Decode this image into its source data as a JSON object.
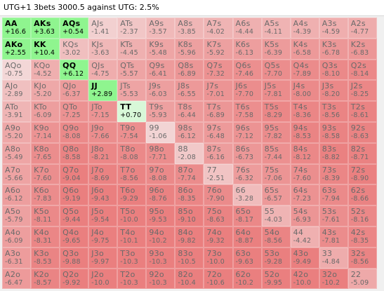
{
  "title": "UTG+1 3bets 3000.5 against UTG: 2.5%",
  "colors": {
    "selected_bg": "#8ff58f",
    "selected_light_bg": "#d8f8d8",
    "neutral_bg": "#ededed",
    "positive_bg": "#f0f0f0",
    "negative_pale": "#f3dada",
    "negative_strong": "#ea7f7f"
  },
  "grid": {
    "cells": [
      [
        {
          "h": "AA",
          "ev": "+16.6",
          "s": 1
        },
        {
          "h": "AKs",
          "ev": "+3.63",
          "s": 1
        },
        {
          "h": "AQs",
          "ev": "+0.54",
          "s": 1
        },
        {
          "h": "AJs",
          "ev": "-1.41",
          "s": 0
        },
        {
          "h": "ATs",
          "ev": "-2.37",
          "s": 0
        },
        {
          "h": "A9s",
          "ev": "-3.57",
          "s": 0
        },
        {
          "h": "A8s",
          "ev": "-3.85",
          "s": 0
        },
        {
          "h": "A7s",
          "ev": "-4.02",
          "s": 0
        },
        {
          "h": "A6s",
          "ev": "-4.44",
          "s": 0
        },
        {
          "h": "A5s",
          "ev": "-4.11",
          "s": 0
        },
        {
          "h": "A4s",
          "ev": "-4.39",
          "s": 0
        },
        {
          "h": "A3s",
          "ev": "-4.59",
          "s": 0
        },
        {
          "h": "A2s",
          "ev": "-4.77",
          "s": 0
        }
      ],
      [
        {
          "h": "AKo",
          "ev": "+2.55",
          "s": 1
        },
        {
          "h": "KK",
          "ev": "+10.4",
          "s": 1
        },
        {
          "h": "KQs",
          "ev": "-3.02",
          "s": 0
        },
        {
          "h": "KJs",
          "ev": "-3.63",
          "s": 0
        },
        {
          "h": "KTs",
          "ev": "-4.45",
          "s": 0
        },
        {
          "h": "K9s",
          "ev": "-5.48",
          "s": 0
        },
        {
          "h": "K8s",
          "ev": "-5.96",
          "s": 0
        },
        {
          "h": "K7s",
          "ev": "-5.92",
          "s": 0
        },
        {
          "h": "K6s",
          "ev": "-6.13",
          "s": 0
        },
        {
          "h": "K5s",
          "ev": "-6.39",
          "s": 0
        },
        {
          "h": "K4s",
          "ev": "-6.58",
          "s": 0
        },
        {
          "h": "K3s",
          "ev": "-6.78",
          "s": 0
        },
        {
          "h": "K2s",
          "ev": "-6.83",
          "s": 0
        }
      ],
      [
        {
          "h": "AQo",
          "ev": "-0.75",
          "s": 0
        },
        {
          "h": "KQo",
          "ev": "-4.52",
          "s": 0
        },
        {
          "h": "QQ",
          "ev": "+6.12",
          "s": 1
        },
        {
          "h": "QJs",
          "ev": "-4.75",
          "s": 0
        },
        {
          "h": "QTs",
          "ev": "-5.57",
          "s": 0
        },
        {
          "h": "Q9s",
          "ev": "-6.41",
          "s": 0
        },
        {
          "h": "Q8s",
          "ev": "-6.89",
          "s": 0
        },
        {
          "h": "Q7s",
          "ev": "-7.32",
          "s": 0
        },
        {
          "h": "Q6s",
          "ev": "-7.46",
          "s": 0
        },
        {
          "h": "Q5s",
          "ev": "-7.70",
          "s": 0
        },
        {
          "h": "Q4s",
          "ev": "-7.89",
          "s": 0
        },
        {
          "h": "Q3s",
          "ev": "-8.10",
          "s": 0
        },
        {
          "h": "Q2s",
          "ev": "-8.14",
          "s": 0
        }
      ],
      [
        {
          "h": "AJo",
          "ev": "-2.89",
          "s": 0
        },
        {
          "h": "KJo",
          "ev": "-5.20",
          "s": 0
        },
        {
          "h": "QJo",
          "ev": "-6.37",
          "s": 0
        },
        {
          "h": "JJ",
          "ev": "+2.89",
          "s": 1
        },
        {
          "h": "JTs",
          "ev": "-5.53",
          "s": 0
        },
        {
          "h": "J9s",
          "ev": "-6.03",
          "s": 0
        },
        {
          "h": "J8s",
          "ev": "-6.55",
          "s": 0
        },
        {
          "h": "J7s",
          "ev": "-7.01",
          "s": 0
        },
        {
          "h": "J6s",
          "ev": "-7.70",
          "s": 0
        },
        {
          "h": "J5s",
          "ev": "-7.81",
          "s": 0
        },
        {
          "h": "J4s",
          "ev": "-8.00",
          "s": 0
        },
        {
          "h": "J3s",
          "ev": "-8.20",
          "s": 0
        },
        {
          "h": "J2s",
          "ev": "-8.25",
          "s": 0
        }
      ],
      [
        {
          "h": "ATo",
          "ev": "-3.91",
          "s": 0
        },
        {
          "h": "KTo",
          "ev": "-6.09",
          "s": 0
        },
        {
          "h": "QTo",
          "ev": "-7.25",
          "s": 0
        },
        {
          "h": "JTo",
          "ev": "-7.15",
          "s": 0
        },
        {
          "h": "TT",
          "ev": "+0.70",
          "s": 2
        },
        {
          "h": "T9s",
          "ev": "-5.93",
          "s": 0
        },
        {
          "h": "T8s",
          "ev": "-6.44",
          "s": 0
        },
        {
          "h": "T7s",
          "ev": "-6.89",
          "s": 0
        },
        {
          "h": "T6s",
          "ev": "-7.58",
          "s": 0
        },
        {
          "h": "T5s",
          "ev": "-8.29",
          "s": 0
        },
        {
          "h": "T4s",
          "ev": "-8.36",
          "s": 0
        },
        {
          "h": "T3s",
          "ev": "-8.56",
          "s": 0
        },
        {
          "h": "T2s",
          "ev": "-8.61",
          "s": 0
        }
      ],
      [
        {
          "h": "A9o",
          "ev": "-5.20",
          "s": 0
        },
        {
          "h": "K9o",
          "ev": "-7.14",
          "s": 0
        },
        {
          "h": "Q9o",
          "ev": "-8.08",
          "s": 0
        },
        {
          "h": "J9o",
          "ev": "-7.66",
          "s": 0
        },
        {
          "h": "T9o",
          "ev": "-7.54",
          "s": 0
        },
        {
          "h": "99",
          "ev": "-1.06",
          "s": 0
        },
        {
          "h": "98s",
          "ev": "-6.12",
          "s": 0
        },
        {
          "h": "97s",
          "ev": "-6.48",
          "s": 0
        },
        {
          "h": "96s",
          "ev": "-7.12",
          "s": 0
        },
        {
          "h": "95s",
          "ev": "-7.82",
          "s": 0
        },
        {
          "h": "94s",
          "ev": "-8.53",
          "s": 0
        },
        {
          "h": "93s",
          "ev": "-8.58",
          "s": 0
        },
        {
          "h": "92s",
          "ev": "-8.63",
          "s": 0
        }
      ],
      [
        {
          "h": "A8o",
          "ev": "-5.49",
          "s": 0
        },
        {
          "h": "K8o",
          "ev": "-7.65",
          "s": 0
        },
        {
          "h": "Q8o",
          "ev": "-8.58",
          "s": 0
        },
        {
          "h": "J8o",
          "ev": "-8.21",
          "s": 0
        },
        {
          "h": "T8o",
          "ev": "-8.08",
          "s": 0
        },
        {
          "h": "98o",
          "ev": "-7.71",
          "s": 0
        },
        {
          "h": "88",
          "ev": "-2.08",
          "s": 0
        },
        {
          "h": "87s",
          "ev": "-6.16",
          "s": 0
        },
        {
          "h": "86s",
          "ev": "-6.73",
          "s": 0
        },
        {
          "h": "85s",
          "ev": "-7.44",
          "s": 0
        },
        {
          "h": "84s",
          "ev": "-8.12",
          "s": 0
        },
        {
          "h": "83s",
          "ev": "-8.82",
          "s": 0
        },
        {
          "h": "82s",
          "ev": "-8.71",
          "s": 0
        }
      ],
      [
        {
          "h": "A7o",
          "ev": "-5.66",
          "s": 0
        },
        {
          "h": "K7o",
          "ev": "-7.60",
          "s": 0
        },
        {
          "h": "Q7o",
          "ev": "-9.04",
          "s": 0
        },
        {
          "h": "J7o",
          "ev": "-8.69",
          "s": 0
        },
        {
          "h": "T7o",
          "ev": "-8.56",
          "s": 0
        },
        {
          "h": "97o",
          "ev": "-8.08",
          "s": 0
        },
        {
          "h": "87o",
          "ev": "-7.74",
          "s": 0
        },
        {
          "h": "77",
          "ev": "-2.51",
          "s": 0
        },
        {
          "h": "76s",
          "ev": "-6.32",
          "s": 0
        },
        {
          "h": "75s",
          "ev": "-7.06",
          "s": 0
        },
        {
          "h": "74s",
          "ev": "-7.60",
          "s": 0
        },
        {
          "h": "73s",
          "ev": "-8.39",
          "s": 0
        },
        {
          "h": "72s",
          "ev": "-8.90",
          "s": 0
        }
      ],
      [
        {
          "h": "A6o",
          "ev": "-6.12",
          "s": 0
        },
        {
          "h": "K6o",
          "ev": "-7.83",
          "s": 0
        },
        {
          "h": "Q6o",
          "ev": "-9.19",
          "s": 0
        },
        {
          "h": "J6o",
          "ev": "-9.43",
          "s": 0
        },
        {
          "h": "T6o",
          "ev": "-9.29",
          "s": 0
        },
        {
          "h": "96o",
          "ev": "-8.76",
          "s": 0
        },
        {
          "h": "86o",
          "ev": "-8.35",
          "s": 0
        },
        {
          "h": "76o",
          "ev": "-7.90",
          "s": 0
        },
        {
          "h": "66",
          "ev": "-3.28",
          "s": 0
        },
        {
          "h": "65s",
          "ev": "-6.57",
          "s": 0
        },
        {
          "h": "64s",
          "ev": "-7.23",
          "s": 0
        },
        {
          "h": "63s",
          "ev": "-7.94",
          "s": 0
        },
        {
          "h": "62s",
          "ev": "-8.66",
          "s": 0
        }
      ],
      [
        {
          "h": "A5o",
          "ev": "-5.79",
          "s": 0
        },
        {
          "h": "K5o",
          "ev": "-8.11",
          "s": 0
        },
        {
          "h": "Q5o",
          "ev": "-9.44",
          "s": 0
        },
        {
          "h": "J5o",
          "ev": "-9.54",
          "s": 0
        },
        {
          "h": "T5o",
          "ev": "-10.0",
          "s": 0
        },
        {
          "h": "95o",
          "ev": "-9.53",
          "s": 0
        },
        {
          "h": "85o",
          "ev": "-9.10",
          "s": 0
        },
        {
          "h": "75o",
          "ev": "-8.63",
          "s": 0
        },
        {
          "h": "65o",
          "ev": "-8.17",
          "s": 0
        },
        {
          "h": "55",
          "ev": "-4.03",
          "s": 0
        },
        {
          "h": "54s",
          "ev": "-6.93",
          "s": 0
        },
        {
          "h": "53s",
          "ev": "-7.61",
          "s": 0
        },
        {
          "h": "52s",
          "ev": "-8.16",
          "s": 0
        }
      ],
      [
        {
          "h": "A4o",
          "ev": "-6.09",
          "s": 0
        },
        {
          "h": "K4o",
          "ev": "-8.31",
          "s": 0
        },
        {
          "h": "Q4o",
          "ev": "-9.65",
          "s": 0
        },
        {
          "h": "J4o",
          "ev": "-9.75",
          "s": 0
        },
        {
          "h": "T4o",
          "ev": "-10.1",
          "s": 0
        },
        {
          "h": "94o",
          "ev": "-10.2",
          "s": 0
        },
        {
          "h": "84o",
          "ev": "-9.82",
          "s": 0
        },
        {
          "h": "74o",
          "ev": "-9.32",
          "s": 0
        },
        {
          "h": "64o",
          "ev": "-8.87",
          "s": 0
        },
        {
          "h": "54o",
          "ev": "-8.56",
          "s": 0
        },
        {
          "h": "44",
          "ev": "-4.42",
          "s": 0
        },
        {
          "h": "43s",
          "ev": "-7.81",
          "s": 0
        },
        {
          "h": "42s",
          "ev": "-8.35",
          "s": 0
        }
      ],
      [
        {
          "h": "A3o",
          "ev": "-6.31",
          "s": 0
        },
        {
          "h": "K3o",
          "ev": "-8.53",
          "s": 0
        },
        {
          "h": "Q3o",
          "ev": "-9.88",
          "s": 0
        },
        {
          "h": "J3o",
          "ev": "-9.97",
          "s": 0
        },
        {
          "h": "T3o",
          "ev": "-10.3",
          "s": 0
        },
        {
          "h": "93o",
          "ev": "-10.3",
          "s": 0
        },
        {
          "h": "83o",
          "ev": "-10.5",
          "s": 0
        },
        {
          "h": "73o",
          "ev": "-10.0",
          "s": 0
        },
        {
          "h": "63o",
          "ev": "-9.63",
          "s": 0
        },
        {
          "h": "53o",
          "ev": "-9.28",
          "s": 0
        },
        {
          "h": "43o",
          "ev": "-9.49",
          "s": 0
        },
        {
          "h": "33",
          "ev": "-4.84",
          "s": 0
        },
        {
          "h": "32s",
          "ev": "-8.56",
          "s": 0
        }
      ],
      [
        {
          "h": "A2o",
          "ev": "-6.47",
          "s": 0
        },
        {
          "h": "K2o",
          "ev": "-8.57",
          "s": 0
        },
        {
          "h": "Q2o",
          "ev": "-9.92",
          "s": 0
        },
        {
          "h": "J2o",
          "ev": "-10.0",
          "s": 0
        },
        {
          "h": "T2o",
          "ev": "-10.3",
          "s": 0
        },
        {
          "h": "92o",
          "ev": "-10.3",
          "s": 0
        },
        {
          "h": "82o",
          "ev": "-10.4",
          "s": 0
        },
        {
          "h": "72o",
          "ev": "-10.6",
          "s": 0
        },
        {
          "h": "62o",
          "ev": "-10.2",
          "s": 0
        },
        {
          "h": "52o",
          "ev": "-9.95",
          "s": 0
        },
        {
          "h": "42o",
          "ev": "-10.0",
          "s": 0
        },
        {
          "h": "32o",
          "ev": "-10.2",
          "s": 0
        },
        {
          "h": "22",
          "ev": "-5.09",
          "s": 0
        }
      ]
    ]
  }
}
